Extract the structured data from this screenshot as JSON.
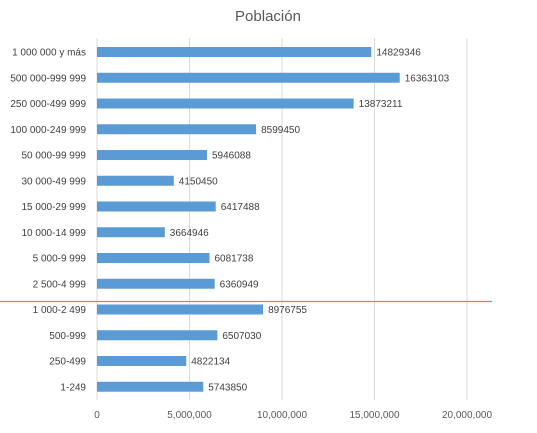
{
  "chart_data": {
    "type": "bar",
    "orientation": "horizontal",
    "title": "Población",
    "categories": [
      "1 000 000 y más",
      "500 000-999 999",
      "250 000-499 999",
      "100 000-249 999",
      "50 000-99 999",
      "30 000-49 999",
      "15 000-29 999",
      "10 000-14 999",
      "5 000-9 999",
      "2 500-4 999",
      "1 000-2 499",
      "500-999",
      "250-499",
      "1-249"
    ],
    "values": [
      14829346,
      16363103,
      13873211,
      8599450,
      5946088,
      4150450,
      6417488,
      3664946,
      6081738,
      6360949,
      8976755,
      6507030,
      4822134,
      5743850
    ],
    "data_labels": [
      "14829346",
      "16363103",
      "13873211",
      "8599450",
      "5946088",
      "4150450",
      "6417488",
      "3664946",
      "6081738",
      "6360949",
      "8976755",
      "6507030",
      "4822134",
      "5743850"
    ],
    "xlim": [
      0,
      20000000
    ],
    "x_ticks": [
      "0",
      "5,000,000",
      "10,000,000",
      "15,000,000",
      "20,000,000"
    ],
    "grid": true,
    "legend": "none",
    "bar_color": "#5B9BD5",
    "divider_line_color": "#ED7D31",
    "divider_after_category": "2 500-4 999"
  }
}
